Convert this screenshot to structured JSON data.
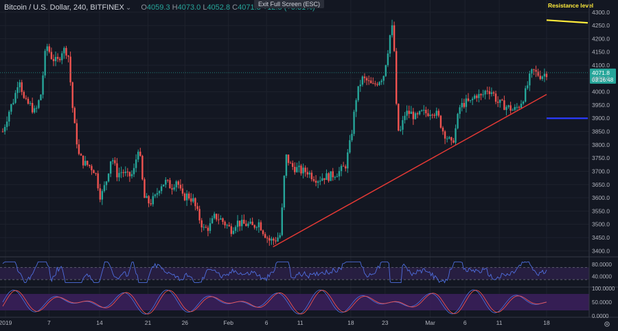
{
  "header": {
    "symbol": "Bitcoin / U.S. Dollar, 240, BITFINEX",
    "o_label": "O",
    "o_val": "4059.3",
    "h_label": "H",
    "h_val": "4073.0",
    "l_label": "L",
    "l_val": "4052.8",
    "c_label": "C",
    "c_val": "4071.8",
    "change": "+12.5 (+0.31%)",
    "exit_fullscreen": "Exit Full Screen (ESC)"
  },
  "price_tag": {
    "price": "4071.8",
    "countdown": "03:16:48"
  },
  "annotations": {
    "resistance": "Resistance level"
  },
  "colors": {
    "background": "#131722",
    "up": "#26a69a",
    "down": "#ef5350",
    "trendline": "#e53935",
    "resistance": "#ffeb3b",
    "support": "#1e22cc",
    "rsi": "#2962ff",
    "stoch_k": "#4a6bd6",
    "stoch_d": "#ef5350"
  },
  "chart_data": [
    {
      "type": "candlestick",
      "title": "Bitcoin / U.S. Dollar, 240, BITFINEX",
      "y_ticks": [
        "4300.0",
        "4250.0",
        "4200.0",
        "4150.0",
        "4100.0",
        "4050.0",
        "4000.0",
        "3950.0",
        "3900.0",
        "3850.0",
        "3800.0",
        "3750.0",
        "3700.0",
        "3650.0",
        "3600.0",
        "3550.0",
        "3500.0",
        "3450.0",
        "3400.0"
      ],
      "ylim": [
        3380,
        4315
      ],
      "x_ticks": [
        "2019",
        "7",
        "14",
        "21",
        "26",
        "Feb",
        "6",
        "11",
        "18",
        "23",
        "Mar",
        "6",
        "11",
        "18"
      ],
      "x_tick_fraction": [
        0.005,
        0.085,
        0.178,
        0.267,
        0.335,
        0.415,
        0.485,
        0.547,
        0.64,
        0.703,
        0.786,
        0.85,
        0.913,
        1.0
      ],
      "close_path": [
        [
          0.0,
          3850
        ],
        [
          0.012,
          3930
        ],
        [
          0.022,
          3980
        ],
        [
          0.03,
          4060
        ],
        [
          0.04,
          3960
        ],
        [
          0.05,
          3950
        ],
        [
          0.06,
          3920
        ],
        [
          0.07,
          3990
        ],
        [
          0.08,
          4180
        ],
        [
          0.09,
          4130
        ],
        [
          0.1,
          4110
        ],
        [
          0.11,
          4160
        ],
        [
          0.12,
          4150
        ],
        [
          0.13,
          3900
        ],
        [
          0.14,
          3760
        ],
        [
          0.15,
          3730
        ],
        [
          0.16,
          3720
        ],
        [
          0.17,
          3700
        ],
        [
          0.18,
          3600
        ],
        [
          0.19,
          3660
        ],
        [
          0.2,
          3760
        ],
        [
          0.21,
          3690
        ],
        [
          0.22,
          3700
        ],
        [
          0.23,
          3680
        ],
        [
          0.24,
          3690
        ],
        [
          0.25,
          3800
        ],
        [
          0.26,
          3600
        ],
        [
          0.27,
          3580
        ],
        [
          0.28,
          3600
        ],
        [
          0.29,
          3650
        ],
        [
          0.3,
          3660
        ],
        [
          0.31,
          3640
        ],
        [
          0.32,
          3670
        ],
        [
          0.33,
          3600
        ],
        [
          0.34,
          3610
        ],
        [
          0.35,
          3590
        ],
        [
          0.36,
          3530
        ],
        [
          0.37,
          3480
        ],
        [
          0.38,
          3490
        ],
        [
          0.39,
          3530
        ],
        [
          0.4,
          3520
        ],
        [
          0.41,
          3500
        ],
        [
          0.42,
          3480
        ],
        [
          0.43,
          3510
        ],
        [
          0.44,
          3500
        ],
        [
          0.45,
          3500
        ],
        [
          0.46,
          3490
        ],
        [
          0.47,
          3510
        ],
        [
          0.48,
          3470
        ],
        [
          0.49,
          3440
        ],
        [
          0.5,
          3440
        ],
        [
          0.51,
          3460
        ],
        [
          0.515,
          3590
        ],
        [
          0.52,
          3760
        ],
        [
          0.53,
          3720
        ],
        [
          0.54,
          3710
        ],
        [
          0.55,
          3700
        ],
        [
          0.56,
          3700
        ],
        [
          0.57,
          3680
        ],
        [
          0.58,
          3670
        ],
        [
          0.59,
          3680
        ],
        [
          0.6,
          3680
        ],
        [
          0.61,
          3690
        ],
        [
          0.62,
          3700
        ],
        [
          0.63,
          3720
        ],
        [
          0.64,
          3820
        ],
        [
          0.65,
          3980
        ],
        [
          0.66,
          4050
        ],
        [
          0.67,
          4040
        ],
        [
          0.68,
          4020
        ],
        [
          0.69,
          4040
        ],
        [
          0.7,
          4060
        ],
        [
          0.71,
          4180
        ],
        [
          0.715,
          4260
        ],
        [
          0.72,
          4150
        ],
        [
          0.725,
          3870
        ],
        [
          0.73,
          3840
        ],
        [
          0.74,
          3920
        ],
        [
          0.75,
          3920
        ],
        [
          0.76,
          3900
        ],
        [
          0.77,
          3920
        ],
        [
          0.78,
          3920
        ],
        [
          0.79,
          3930
        ],
        [
          0.8,
          3910
        ],
        [
          0.81,
          3850
        ],
        [
          0.82,
          3820
        ],
        [
          0.825,
          3800
        ],
        [
          0.83,
          3830
        ],
        [
          0.84,
          3940
        ],
        [
          0.85,
          3960
        ],
        [
          0.86,
          3960
        ],
        [
          0.87,
          3990
        ],
        [
          0.88,
          3980
        ],
        [
          0.89,
          4010
        ],
        [
          0.9,
          4000
        ],
        [
          0.91,
          3960
        ],
        [
          0.92,
          3950
        ],
        [
          0.93,
          3940
        ],
        [
          0.94,
          3930
        ],
        [
          0.95,
          3950
        ],
        [
          0.96,
          3990
        ],
        [
          0.97,
          4060
        ],
        [
          0.975,
          4080
        ],
        [
          0.98,
          4070
        ],
        [
          0.99,
          4060
        ],
        [
          1.0,
          4072
        ]
      ],
      "trendline": {
        "from": [
          "Feb 8",
          3415
        ],
        "to": [
          "Mar 18",
          3990
        ],
        "color": "red"
      },
      "resistance": {
        "label": "Resistance level",
        "value": 4265
      },
      "support": {
        "value": 3900
      }
    },
    {
      "type": "line",
      "title": "",
      "y_ticks": [
        "80.0000",
        "40.0000"
      ],
      "band": [
        30,
        70
      ],
      "ylim": [
        10,
        100
      ]
    },
    {
      "type": "line",
      "title": "",
      "y_ticks": [
        "100.0000",
        "50.0000",
        "0.0000"
      ],
      "band": [
        20,
        80
      ],
      "ylim": [
        0,
        100
      ]
    }
  ]
}
